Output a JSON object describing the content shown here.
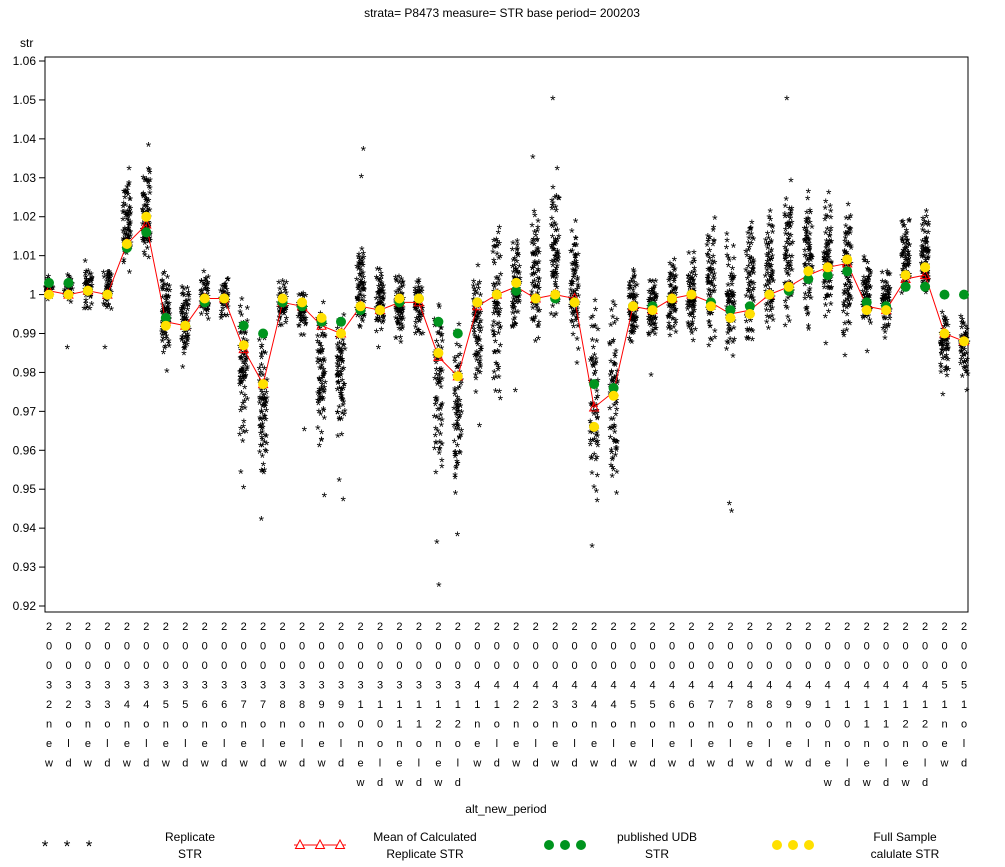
{
  "title": "strata= P8473 measure= STR base period= 200203",
  "colors": {
    "replicate": "#2222d9",
    "mean_line": "#ff0000",
    "published": "#00941e",
    "full_sample": "#ffe000",
    "axis": "#000000",
    "background": "#ffffff"
  },
  "y_axis": {
    "label": "str",
    "min": 0.92,
    "max": 1.06,
    "step": 0.01,
    "tick_labels": [
      "1.06",
      "1.05",
      "1.04",
      "1.03",
      "1.02",
      "1.01",
      "1",
      "0.99",
      "0.98",
      "0.97",
      "0.96",
      "0.95",
      "0.94",
      "0.93",
      "0.92"
    ]
  },
  "x_axis": {
    "label": "alt_new_period"
  },
  "legend": [
    {
      "symbol": "asterisks",
      "color": "#2222d9",
      "line1": "Replicate",
      "line2": "STR"
    },
    {
      "symbol": "triangles",
      "color": "#ff0000",
      "line1": "Mean of Calculated",
      "line2": "Replicate STR"
    },
    {
      "symbol": "dots",
      "color": "#00941e",
      "line1": "published UDB",
      "line2": "STR"
    },
    {
      "symbol": "dots",
      "color": "#ffe000",
      "line1": "Full Sample",
      "line2": "calulate STR"
    }
  ],
  "chart_data": {
    "type": "scatter",
    "title": "strata= P8473 measure= STR base period= 200203",
    "xlabel": "alt_new_period",
    "ylabel": "str",
    "ylim": [
      0.92,
      1.06
    ],
    "grid": false,
    "legend_position": "bottom",
    "series": [
      {
        "name": "Replicate STR",
        "marker": "asterisk",
        "color": "#2222d9"
      },
      {
        "name": "Mean of Calculated Replicate STR",
        "marker": "open-triangle-with-line",
        "color": "#ff0000"
      },
      {
        "name": "published UDB STR",
        "marker": "filled-dot",
        "color": "#00941e"
      },
      {
        "name": "Full Sample calulate STR",
        "marker": "filled-dot",
        "color": "#ffe000"
      }
    ],
    "points": [
      {
        "label": "20032new",
        "lo": 0.998,
        "hi": 1.005,
        "mean": 1.001,
        "published": 1.003,
        "full_sample": 1.0,
        "outliers": []
      },
      {
        "label": "20032old",
        "lo": 0.997,
        "hi": 1.005,
        "mean": 1.0,
        "published": 1.003,
        "full_sample": 1.0,
        "outliers": [
          0.986
        ]
      },
      {
        "label": "20033new",
        "lo": 0.995,
        "hi": 1.009,
        "mean": 1.001,
        "published": 1.001,
        "full_sample": 1.001,
        "outliers": []
      },
      {
        "label": "20033old",
        "lo": 0.994,
        "hi": 1.008,
        "mean": 1.0,
        "published": 1.0,
        "full_sample": 1.0,
        "outliers": [
          0.986
        ]
      },
      {
        "label": "20034new",
        "lo": 1.004,
        "hi": 1.03,
        "mean": 1.013,
        "published": 1.012,
        "full_sample": 1.013,
        "outliers": [
          1.032
        ]
      },
      {
        "label": "20034old",
        "lo": 1.005,
        "hi": 1.034,
        "mean": 1.018,
        "published": 1.016,
        "full_sample": 1.02,
        "outliers": [
          1.038
        ]
      },
      {
        "label": "20035new",
        "lo": 0.984,
        "hi": 1.006,
        "mean": 0.993,
        "published": 0.994,
        "full_sample": 0.992,
        "outliers": [
          0.98
        ]
      },
      {
        "label": "20035old",
        "lo": 0.983,
        "hi": 1.003,
        "mean": 0.992,
        "published": 0.992,
        "full_sample": 0.992,
        "outliers": [
          0.981
        ]
      },
      {
        "label": "20036new",
        "lo": 0.992,
        "hi": 1.007,
        "mean": 0.999,
        "published": 0.998,
        "full_sample": 0.999,
        "outliers": []
      },
      {
        "label": "20036old",
        "lo": 0.992,
        "hi": 1.006,
        "mean": 0.999,
        "published": 0.999,
        "full_sample": 0.999,
        "outliers": []
      },
      {
        "label": "20037new",
        "lo": 0.958,
        "hi": 1.002,
        "mean": 0.986,
        "published": 0.992,
        "full_sample": 0.987,
        "outliers": [
          0.95,
          0.954
        ]
      },
      {
        "label": "20037old",
        "lo": 0.948,
        "hi": 0.996,
        "mean": 0.977,
        "published": 0.99,
        "full_sample": 0.977,
        "outliers": [
          0.942,
          0.956
        ]
      },
      {
        "label": "20038new",
        "lo": 0.99,
        "hi": 1.004,
        "mean": 0.998,
        "published": 0.998,
        "full_sample": 0.999,
        "outliers": []
      },
      {
        "label": "20038old",
        "lo": 0.988,
        "hi": 1.002,
        "mean": 0.997,
        "published": 0.997,
        "full_sample": 0.998,
        "outliers": [
          0.965
        ]
      },
      {
        "label": "20039new",
        "lo": 0.958,
        "hi": 1.0,
        "mean": 0.992,
        "published": 0.993,
        "full_sample": 0.994,
        "outliers": [
          0.948
        ]
      },
      {
        "label": "20039old",
        "lo": 0.96,
        "hi": 0.998,
        "mean": 0.99,
        "published": 0.993,
        "full_sample": 0.99,
        "outliers": [
          0.947,
          0.952
        ]
      },
      {
        "label": "200310new",
        "lo": 0.988,
        "hi": 1.012,
        "mean": 0.997,
        "published": 0.996,
        "full_sample": 0.997,
        "outliers": [
          1.03,
          1.037
        ]
      },
      {
        "label": "200310old",
        "lo": 0.988,
        "hi": 1.008,
        "mean": 0.996,
        "published": 0.996,
        "full_sample": 0.996,
        "outliers": [
          0.986
        ]
      },
      {
        "label": "200311new",
        "lo": 0.986,
        "hi": 1.006,
        "mean": 0.998,
        "published": 0.998,
        "full_sample": 0.999,
        "outliers": []
      },
      {
        "label": "200311old",
        "lo": 0.988,
        "hi": 1.006,
        "mean": 0.998,
        "published": 0.999,
        "full_sample": 0.999,
        "outliers": []
      },
      {
        "label": "200312new",
        "lo": 0.952,
        "hi": 0.998,
        "mean": 0.984,
        "published": 0.993,
        "full_sample": 0.985,
        "outliers": [
          0.936,
          0.925
        ]
      },
      {
        "label": "200312old",
        "lo": 0.946,
        "hi": 0.994,
        "mean": 0.979,
        "published": 0.99,
        "full_sample": 0.979,
        "outliers": [
          0.938
        ]
      },
      {
        "label": "20041new",
        "lo": 0.972,
        "hi": 1.01,
        "mean": 0.997,
        "published": 0.998,
        "full_sample": 0.998,
        "outliers": [
          0.966
        ]
      },
      {
        "label": "20041old",
        "lo": 0.968,
        "hi": 1.022,
        "mean": 1.0,
        "published": 1.0,
        "full_sample": 1.0,
        "outliers": []
      },
      {
        "label": "20042new",
        "lo": 0.988,
        "hi": 1.015,
        "mean": 1.002,
        "published": 1.001,
        "full_sample": 1.003,
        "outliers": [
          0.975
        ]
      },
      {
        "label": "20042old",
        "lo": 0.985,
        "hi": 1.022,
        "mean": 0.999,
        "published": 0.999,
        "full_sample": 0.999,
        "outliers": [
          1.035
        ]
      },
      {
        "label": "20043new",
        "lo": 0.99,
        "hi": 1.03,
        "mean": 1.0,
        "published": 0.999,
        "full_sample": 1.0,
        "outliers": [
          1.05,
          1.032
        ]
      },
      {
        "label": "20043old",
        "lo": 0.985,
        "hi": 1.02,
        "mean": 0.999,
        "published": 0.998,
        "full_sample": 0.998,
        "outliers": [
          0.982
        ]
      },
      {
        "label": "20044new",
        "lo": 0.94,
        "hi": 1.0,
        "mean": 0.971,
        "published": 0.977,
        "full_sample": 0.966,
        "outliers": [
          0.935
        ]
      },
      {
        "label": "20044old",
        "lo": 0.948,
        "hi": 1.002,
        "mean": 0.975,
        "published": 0.976,
        "full_sample": 0.974,
        "outliers": []
      },
      {
        "label": "20045new",
        "lo": 0.985,
        "hi": 1.008,
        "mean": 0.997,
        "published": 0.997,
        "full_sample": 0.997,
        "outliers": []
      },
      {
        "label": "20045old",
        "lo": 0.985,
        "hi": 1.005,
        "mean": 0.996,
        "published": 0.997,
        "full_sample": 0.996,
        "outliers": [
          0.979
        ]
      },
      {
        "label": "20046new",
        "lo": 0.988,
        "hi": 1.01,
        "mean": 0.999,
        "published": 0.999,
        "full_sample": 0.999,
        "outliers": []
      },
      {
        "label": "20046old",
        "lo": 0.986,
        "hi": 1.012,
        "mean": 1.0,
        "published": 1.0,
        "full_sample": 1.0,
        "outliers": []
      },
      {
        "label": "20047new",
        "lo": 0.985,
        "hi": 1.02,
        "mean": 0.998,
        "published": 0.998,
        "full_sample": 0.997,
        "outliers": []
      },
      {
        "label": "20047old",
        "lo": 0.982,
        "hi": 1.016,
        "mean": 0.995,
        "published": 0.996,
        "full_sample": 0.994,
        "outliers": [
          0.944,
          0.946
        ]
      },
      {
        "label": "20048new",
        "lo": 0.985,
        "hi": 1.02,
        "mean": 0.996,
        "published": 0.997,
        "full_sample": 0.995,
        "outliers": []
      },
      {
        "label": "20048old",
        "lo": 0.988,
        "hi": 1.024,
        "mean": 1.0,
        "published": 1.0,
        "full_sample": 1.0,
        "outliers": []
      },
      {
        "label": "20049new",
        "lo": 0.988,
        "hi": 1.03,
        "mean": 1.002,
        "published": 1.001,
        "full_sample": 1.002,
        "outliers": [
          1.05
        ]
      },
      {
        "label": "20049old",
        "lo": 0.986,
        "hi": 1.03,
        "mean": 1.005,
        "published": 1.004,
        "full_sample": 1.006,
        "outliers": []
      },
      {
        "label": "200410new",
        "lo": 0.99,
        "hi": 1.028,
        "mean": 1.007,
        "published": 1.005,
        "full_sample": 1.007,
        "outliers": [
          0.987
        ]
      },
      {
        "label": "200410old",
        "lo": 0.986,
        "hi": 1.024,
        "mean": 1.008,
        "published": 1.006,
        "full_sample": 1.009,
        "outliers": [
          0.984
        ]
      },
      {
        "label": "200411new",
        "lo": 0.99,
        "hi": 1.01,
        "mean": 0.997,
        "published": 0.998,
        "full_sample": 0.996,
        "outliers": [
          0.985
        ]
      },
      {
        "label": "200411old",
        "lo": 0.988,
        "hi": 1.008,
        "mean": 0.996,
        "published": 0.997,
        "full_sample": 0.996,
        "outliers": []
      },
      {
        "label": "200412new",
        "lo": 0.998,
        "hi": 1.02,
        "mean": 1.004,
        "published": 1.002,
        "full_sample": 1.005,
        "outliers": []
      },
      {
        "label": "200412old",
        "lo": 0.998,
        "hi": 1.022,
        "mean": 1.005,
        "published": 1.002,
        "full_sample": 1.007,
        "outliers": []
      },
      {
        "label": "20051new",
        "lo": 0.978,
        "hi": 0.996,
        "mean": 0.99,
        "published": 1.0,
        "full_sample": 0.99,
        "outliers": [
          0.974
        ]
      },
      {
        "label": "20051old",
        "lo": 0.978,
        "hi": 0.995,
        "mean": 0.988,
        "published": 1.0,
        "full_sample": 0.988,
        "outliers": [
          0.975
        ]
      }
    ]
  }
}
